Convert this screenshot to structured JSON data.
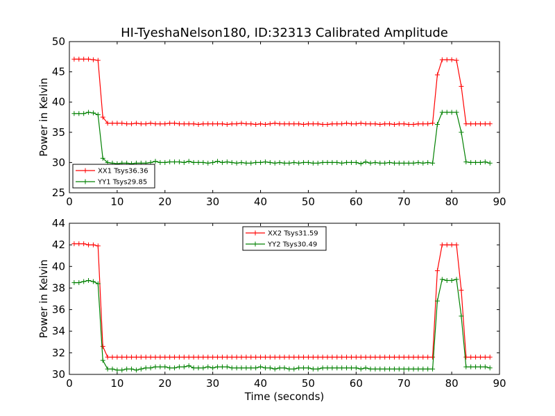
{
  "figure_title": "HI-TyeshaNelson180, ID:32313 Calibrated Amplitude",
  "colors": {
    "xx": "#ff0000",
    "yy": "#008000",
    "axes": "#000000"
  },
  "chart_data": [
    {
      "type": "line",
      "title": "HI-TyeshaNelson180, ID:32313 Calibrated Amplitude",
      "xlabel": "",
      "ylabel": "Power in Kelvin",
      "xlim": [
        0,
        90
      ],
      "ylim": [
        25,
        50
      ],
      "xticks": [
        0,
        10,
        20,
        30,
        40,
        50,
        60,
        70,
        80,
        90
      ],
      "yticks": [
        25,
        30,
        35,
        40,
        45,
        50
      ],
      "grid": false,
      "legend_position": "lower-left",
      "x": [
        1,
        2,
        3,
        4,
        5,
        6,
        7,
        8,
        9,
        10,
        11,
        12,
        13,
        14,
        15,
        16,
        17,
        18,
        19,
        20,
        21,
        22,
        23,
        24,
        25,
        26,
        27,
        28,
        29,
        30,
        31,
        32,
        33,
        34,
        35,
        36,
        37,
        38,
        39,
        40,
        41,
        42,
        43,
        44,
        45,
        46,
        47,
        48,
        49,
        50,
        51,
        52,
        53,
        54,
        55,
        56,
        57,
        58,
        59,
        60,
        61,
        62,
        63,
        64,
        65,
        66,
        67,
        68,
        69,
        70,
        71,
        72,
        73,
        74,
        75,
        76,
        77,
        78,
        79,
        80,
        81,
        82,
        83,
        84,
        85,
        86,
        87,
        88
      ],
      "series": [
        {
          "name": "XX1 Tsys36.36",
          "color": "#ff0000",
          "values": [
            47.1,
            47.1,
            47.1,
            47.1,
            47.0,
            46.9,
            37.5,
            36.5,
            36.5,
            36.5,
            36.5,
            36.4,
            36.4,
            36.5,
            36.4,
            36.4,
            36.5,
            36.4,
            36.4,
            36.4,
            36.5,
            36.5,
            36.4,
            36.4,
            36.4,
            36.4,
            36.3,
            36.4,
            36.4,
            36.4,
            36.4,
            36.4,
            36.3,
            36.4,
            36.4,
            36.5,
            36.4,
            36.4,
            36.3,
            36.4,
            36.3,
            36.4,
            36.5,
            36.4,
            36.4,
            36.4,
            36.4,
            36.4,
            36.3,
            36.4,
            36.4,
            36.4,
            36.3,
            36.3,
            36.4,
            36.4,
            36.4,
            36.5,
            36.4,
            36.4,
            36.5,
            36.4,
            36.4,
            36.4,
            36.3,
            36.4,
            36.4,
            36.3,
            36.4,
            36.4,
            36.3,
            36.3,
            36.4,
            36.4,
            36.4,
            36.5,
            44.5,
            47.0,
            47.0,
            47.0,
            46.9,
            42.6,
            36.4,
            36.4,
            36.4,
            36.4,
            36.4,
            36.4
          ]
        },
        {
          "name": "YY1 Tsys29.85",
          "color": "#008000",
          "values": [
            38.1,
            38.1,
            38.1,
            38.3,
            38.2,
            37.9,
            30.7,
            30.0,
            29.9,
            29.8,
            29.9,
            29.9,
            29.8,
            29.9,
            29.9,
            29.9,
            30.0,
            30.2,
            30.0,
            30.0,
            30.1,
            30.1,
            30.1,
            30.0,
            30.2,
            30.0,
            30.0,
            30.0,
            29.9,
            30.0,
            30.2,
            30.0,
            30.1,
            30.0,
            29.9,
            30.0,
            29.9,
            29.9,
            30.0,
            30.0,
            30.1,
            30.0,
            29.9,
            30.0,
            29.9,
            29.9,
            30.0,
            29.9,
            30.0,
            30.0,
            29.9,
            29.9,
            30.0,
            30.0,
            30.0,
            30.0,
            29.9,
            30.0,
            30.0,
            30.0,
            29.8,
            30.1,
            29.9,
            30.0,
            29.9,
            29.9,
            30.0,
            29.9,
            29.9,
            29.9,
            29.9,
            29.9,
            30.0,
            29.9,
            30.0,
            29.9,
            36.3,
            38.3,
            38.3,
            38.3,
            38.3,
            35.0,
            30.1,
            30.0,
            30.0,
            30.0,
            30.1,
            29.9
          ]
        }
      ]
    },
    {
      "type": "line",
      "title": "",
      "xlabel": "Time (seconds)",
      "ylabel": "Power in Kelvin",
      "xlim": [
        0,
        90
      ],
      "ylim": [
        30,
        44
      ],
      "xticks": [
        0,
        10,
        20,
        30,
        40,
        50,
        60,
        70,
        80,
        90
      ],
      "yticks": [
        30,
        32,
        34,
        36,
        38,
        40,
        42,
        44
      ],
      "grid": false,
      "legend_position": "upper-center",
      "x": [
        1,
        2,
        3,
        4,
        5,
        6,
        7,
        8,
        9,
        10,
        11,
        12,
        13,
        14,
        15,
        16,
        17,
        18,
        19,
        20,
        21,
        22,
        23,
        24,
        25,
        26,
        27,
        28,
        29,
        30,
        31,
        32,
        33,
        34,
        35,
        36,
        37,
        38,
        39,
        40,
        41,
        42,
        43,
        44,
        45,
        46,
        47,
        48,
        49,
        50,
        51,
        52,
        53,
        54,
        55,
        56,
        57,
        58,
        59,
        60,
        61,
        62,
        63,
        64,
        65,
        66,
        67,
        68,
        69,
        70,
        71,
        72,
        73,
        74,
        75,
        76,
        77,
        78,
        79,
        80,
        81,
        82,
        83,
        84,
        85,
        86,
        87,
        88
      ],
      "series": [
        {
          "name": "XX2 Tsys31.59",
          "color": "#ff0000",
          "values": [
            42.1,
            42.1,
            42.1,
            42.0,
            42.0,
            41.9,
            32.6,
            31.6,
            31.6,
            31.6,
            31.6,
            31.6,
            31.6,
            31.6,
            31.6,
            31.6,
            31.6,
            31.6,
            31.6,
            31.6,
            31.6,
            31.6,
            31.6,
            31.6,
            31.6,
            31.6,
            31.6,
            31.6,
            31.6,
            31.6,
            31.6,
            31.6,
            31.6,
            31.6,
            31.6,
            31.6,
            31.6,
            31.6,
            31.6,
            31.6,
            31.6,
            31.6,
            31.6,
            31.6,
            31.6,
            31.6,
            31.6,
            31.6,
            31.6,
            31.6,
            31.6,
            31.6,
            31.6,
            31.6,
            31.6,
            31.6,
            31.6,
            31.6,
            31.6,
            31.6,
            31.6,
            31.6,
            31.6,
            31.6,
            31.6,
            31.6,
            31.6,
            31.6,
            31.6,
            31.6,
            31.6,
            31.6,
            31.6,
            31.6,
            31.6,
            31.6,
            39.6,
            42.0,
            42.0,
            42.0,
            42.0,
            37.8,
            31.6,
            31.6,
            31.6,
            31.6,
            31.6,
            31.6
          ]
        },
        {
          "name": "YY2 Tsys30.49",
          "color": "#008000",
          "values": [
            38.5,
            38.5,
            38.6,
            38.7,
            38.6,
            38.4,
            31.3,
            30.5,
            30.5,
            30.4,
            30.4,
            30.5,
            30.5,
            30.4,
            30.5,
            30.6,
            30.6,
            30.7,
            30.7,
            30.7,
            30.6,
            30.6,
            30.7,
            30.7,
            30.8,
            30.6,
            30.6,
            30.6,
            30.7,
            30.6,
            30.7,
            30.7,
            30.7,
            30.6,
            30.6,
            30.6,
            30.6,
            30.6,
            30.6,
            30.7,
            30.6,
            30.6,
            30.5,
            30.6,
            30.6,
            30.5,
            30.5,
            30.6,
            30.6,
            30.6,
            30.5,
            30.5,
            30.6,
            30.6,
            30.6,
            30.6,
            30.6,
            30.6,
            30.6,
            30.6,
            30.5,
            30.6,
            30.5,
            30.5,
            30.5,
            30.5,
            30.5,
            30.5,
            30.5,
            30.5,
            30.5,
            30.5,
            30.5,
            30.5,
            30.5,
            30.5,
            36.8,
            38.8,
            38.7,
            38.7,
            38.8,
            35.4,
            30.7,
            30.7,
            30.7,
            30.7,
            30.7,
            30.6
          ]
        }
      ]
    }
  ]
}
